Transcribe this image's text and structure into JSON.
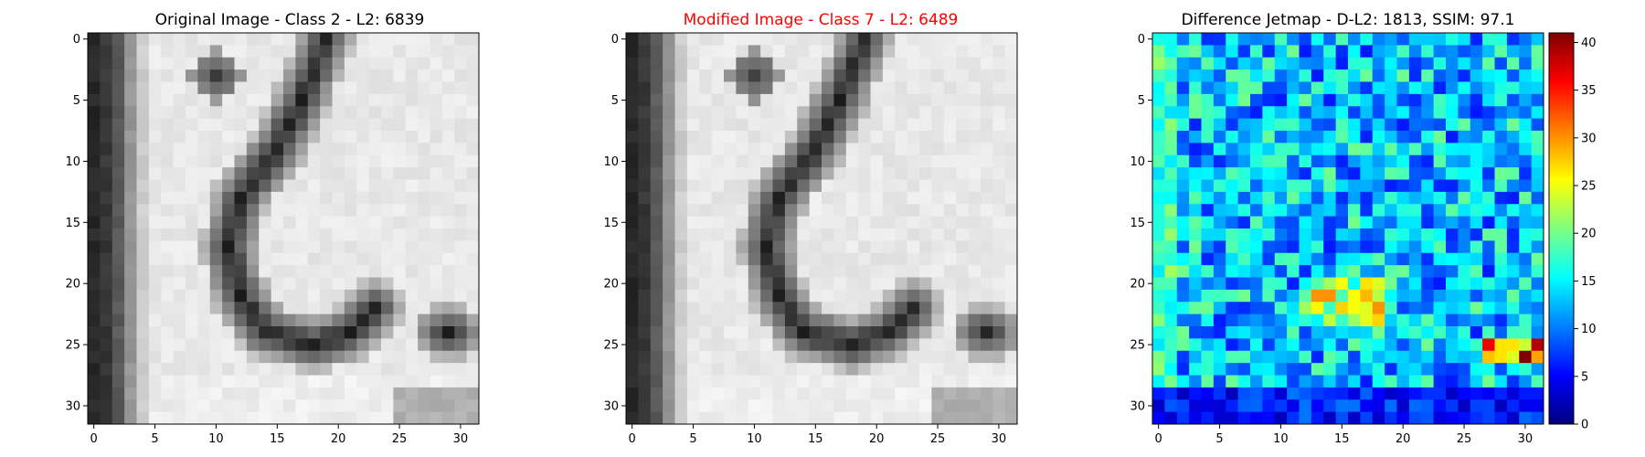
{
  "colors": {
    "title_default": "#000000",
    "title_highlight": "#ff0000",
    "axes_frame": "#000000"
  },
  "chart_data": [
    {
      "type": "heatmap",
      "colormap": "gray",
      "title": "Original Image - Class 2 - L2: 6839",
      "title_color": "#000000",
      "grid": false,
      "x_range": [
        0,
        31
      ],
      "y_range": [
        0,
        31
      ],
      "x_ticks": [
        0,
        5,
        10,
        15,
        20,
        25,
        30
      ],
      "y_ticks": [
        0,
        5,
        10,
        15,
        20,
        25,
        30
      ],
      "value_range": [
        0,
        255
      ],
      "content": "32x32 grayscale image of a handwritten digit '2' on a light background, with a dark vertical band along the left edge"
    },
    {
      "type": "heatmap",
      "colormap": "gray",
      "title": "Modified Image - Class 7 - L2: 6489",
      "title_color": "#ff0000",
      "grid": false,
      "x_range": [
        0,
        31
      ],
      "y_range": [
        0,
        31
      ],
      "x_ticks": [
        0,
        5,
        10,
        15,
        20,
        25,
        30
      ],
      "y_ticks": [
        0,
        5,
        10,
        15,
        20,
        25,
        30
      ],
      "value_range": [
        0,
        255
      ],
      "content": "Slightly perturbed version of the same 32x32 digit image"
    },
    {
      "type": "heatmap",
      "colormap": "jet",
      "title": "Difference Jetmap - D-L2: 1813, SSIM: 97.1",
      "title_color": "#000000",
      "grid": false,
      "x_range": [
        0,
        31
      ],
      "y_range": [
        0,
        31
      ],
      "x_ticks": [
        0,
        5,
        10,
        15,
        20,
        25,
        30
      ],
      "y_ticks": [
        0,
        5,
        10,
        15,
        20,
        25,
        30
      ],
      "value_range": [
        0,
        41
      ],
      "colorbar": {
        "ticks": [
          0,
          5,
          10,
          15,
          20,
          25,
          30,
          35,
          40
        ],
        "min": 0,
        "max": 41
      },
      "content": "32x32 absolute difference map, mostly 0-20 with hot spots (up to ~41) near rows 21-22 and 25-26"
    }
  ]
}
